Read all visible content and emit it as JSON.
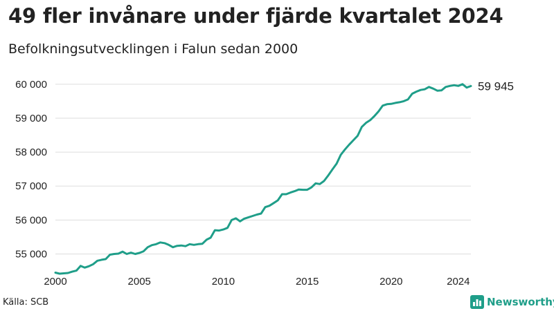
{
  "header": {
    "title": "49 fler invånare under fjärde kvartalet 2024",
    "subtitle": "Befolkningsutvecklingen i Falun sedan 2000"
  },
  "footer": {
    "source": "Källa: SCB",
    "brand": "Newsworthy",
    "brand_icon": "bar-chart-logo-icon"
  },
  "colors": {
    "line": "#1f9e89",
    "grid": "#dddddd",
    "text": "#222222"
  },
  "chart_data": {
    "type": "line",
    "title": "49 fler invånare under fjärde kvartalet 2024",
    "subtitle": "Befolkningsutvecklingen i Falun sedan 2000",
    "xlabel": "",
    "ylabel": "",
    "xlim": [
      2000,
      2024.75
    ],
    "ylim": [
      54400,
      60200
    ],
    "x_ticks": [
      2000,
      2005,
      2010,
      2015,
      2020,
      2024
    ],
    "x_tick_labels": [
      "2000",
      "2005",
      "2010",
      "2015",
      "2020",
      "2024"
    ],
    "y_ticks": [
      55000,
      56000,
      57000,
      58000,
      59000,
      60000
    ],
    "y_tick_labels": [
      "55 000",
      "56 000",
      "57 000",
      "58 000",
      "59 000",
      "60 000"
    ],
    "grid": true,
    "end_label": "59 945",
    "series": [
      {
        "x": [
          2000,
          2000.25,
          2000.5,
          2000.75,
          2001,
          2001.25,
          2001.5,
          2001.75,
          2002,
          2002.25,
          2002.5,
          2002.75,
          2003,
          2003.25,
          2003.5,
          2003.75,
          2004,
          2004.25,
          2004.5,
          2004.75,
          2005,
          2005.25,
          2005.5,
          2005.75,
          2006,
          2006.25,
          2006.5,
          2006.75,
          2007,
          2007.25,
          2007.5,
          2007.75,
          2008,
          2008.25,
          2008.5,
          2008.75,
          2009,
          2009.25,
          2009.5,
          2009.75,
          2010,
          2010.25,
          2010.5,
          2010.75,
          2011,
          2011.25,
          2011.5,
          2011.75,
          2012,
          2012.25,
          2012.5,
          2012.75,
          2013,
          2013.25,
          2013.5,
          2013.75,
          2014,
          2014.25,
          2014.5,
          2014.75,
          2015,
          2015.25,
          2015.5,
          2015.75,
          2016,
          2016.25,
          2016.5,
          2016.75,
          2017,
          2017.25,
          2017.5,
          2017.75,
          2018,
          2018.25,
          2018.5,
          2018.75,
          2019,
          2019.25,
          2019.5,
          2019.75,
          2020,
          2020.25,
          2020.5,
          2020.75,
          2021,
          2021.25,
          2021.5,
          2021.75,
          2022,
          2022.25,
          2022.5,
          2022.75,
          2023,
          2023.25,
          2023.5,
          2023.75,
          2024,
          2024.25,
          2024.5,
          2024.75
        ],
        "values": [
          54450,
          54420,
          54430,
          54440,
          54480,
          54510,
          54650,
          54600,
          54640,
          54700,
          54800,
          54830,
          54850,
          54980,
          55000,
          55010,
          55070,
          55000,
          55040,
          55000,
          55030,
          55080,
          55200,
          55260,
          55290,
          55340,
          55320,
          55270,
          55200,
          55240,
          55250,
          55230,
          55290,
          55270,
          55290,
          55300,
          55420,
          55480,
          55700,
          55690,
          55720,
          55770,
          56000,
          56050,
          55960,
          56040,
          56080,
          56120,
          56160,
          56190,
          56380,
          56420,
          56500,
          56580,
          56760,
          56760,
          56810,
          56850,
          56900,
          56890,
          56890,
          56960,
          57080,
          57060,
          57150,
          57310,
          57490,
          57660,
          57920,
          58080,
          58220,
          58350,
          58480,
          58740,
          58860,
          58940,
          59060,
          59200,
          59370,
          59410,
          59420,
          59450,
          59470,
          59500,
          59550,
          59720,
          59780,
          59830,
          59850,
          59920,
          59870,
          59810,
          59820,
          59920,
          59950,
          59970,
          59950,
          60000,
          59900,
          59945
        ]
      }
    ]
  }
}
